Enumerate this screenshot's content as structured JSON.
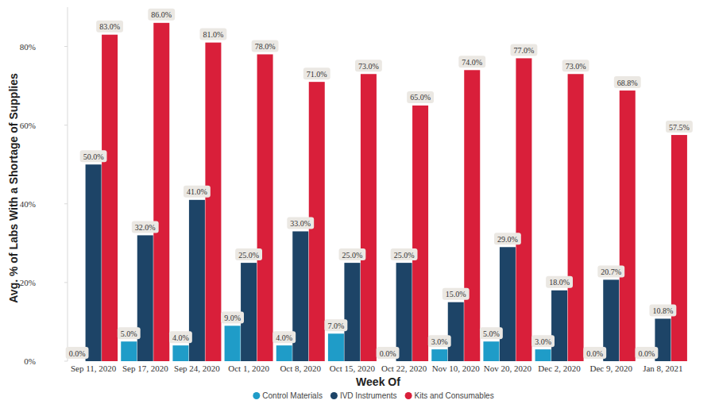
{
  "chart_data": {
    "type": "bar",
    "x_label": "Week Of",
    "y_label": "Avg. % of Labs With a Shortage of Supplies",
    "categories": [
      "Sep 11, 2020",
      "Sep 17, 2020",
      "Sep 24, 2020",
      "Oct 1, 2020",
      "Oct 8, 2020",
      "Oct 15, 2020",
      "Oct 22, 2020",
      "Nov 10, 2020",
      "Nov 20, 2020",
      "Dec 2, 2020",
      "Dec 9, 2020",
      "Jan 8, 2021"
    ],
    "series": [
      {
        "name": "Control Materials",
        "color": "#1f9cc8",
        "values": [
          0,
          5,
          4,
          9,
          4,
          7,
          0,
          3,
          5,
          3,
          0,
          0
        ],
        "value_labels": [
          "0.0%",
          "5.0%",
          "4.0%",
          "9.0%",
          "4.0%",
          "7.0%",
          "0.0%",
          "3.0%",
          "5.0%",
          "3.0%",
          "0.0%",
          "0.0%"
        ]
      },
      {
        "name": "IVD Instruments",
        "color": "#1d4467",
        "values": [
          50,
          32,
          41,
          25,
          33,
          25,
          25,
          15,
          29,
          18,
          20.7,
          10.8
        ],
        "value_labels": [
          "50.0%",
          "32.0%",
          "41.0%",
          "25.0%",
          "33.0%",
          "25.0%",
          "25.0%",
          "15.0%",
          "29.0%",
          "18.0%",
          "20.7%",
          "10.8%"
        ]
      },
      {
        "name": "Kits and Consumables",
        "color": "#d91f3a",
        "values": [
          83,
          86,
          81,
          78,
          71,
          73,
          65,
          74,
          77,
          73,
          68.8,
          57.5
        ],
        "value_labels": [
          "83.0%",
          "86.0%",
          "81.0%",
          "78.0%",
          "71.0%",
          "73.0%",
          "65.0%",
          "74.0%",
          "77.0%",
          "73.0%",
          "68.8%",
          "57.5%"
        ]
      }
    ],
    "ylim": [
      0,
      90
    ],
    "yticks": [
      {
        "value": 0,
        "label": "0%"
      },
      {
        "value": 20,
        "label": "20%"
      },
      {
        "value": 40,
        "label": "40%"
      },
      {
        "value": 60,
        "label": "60%"
      },
      {
        "value": 80,
        "label": "80%"
      }
    ],
    "grid": false,
    "legend": "bottom",
    "data_labels": true
  }
}
